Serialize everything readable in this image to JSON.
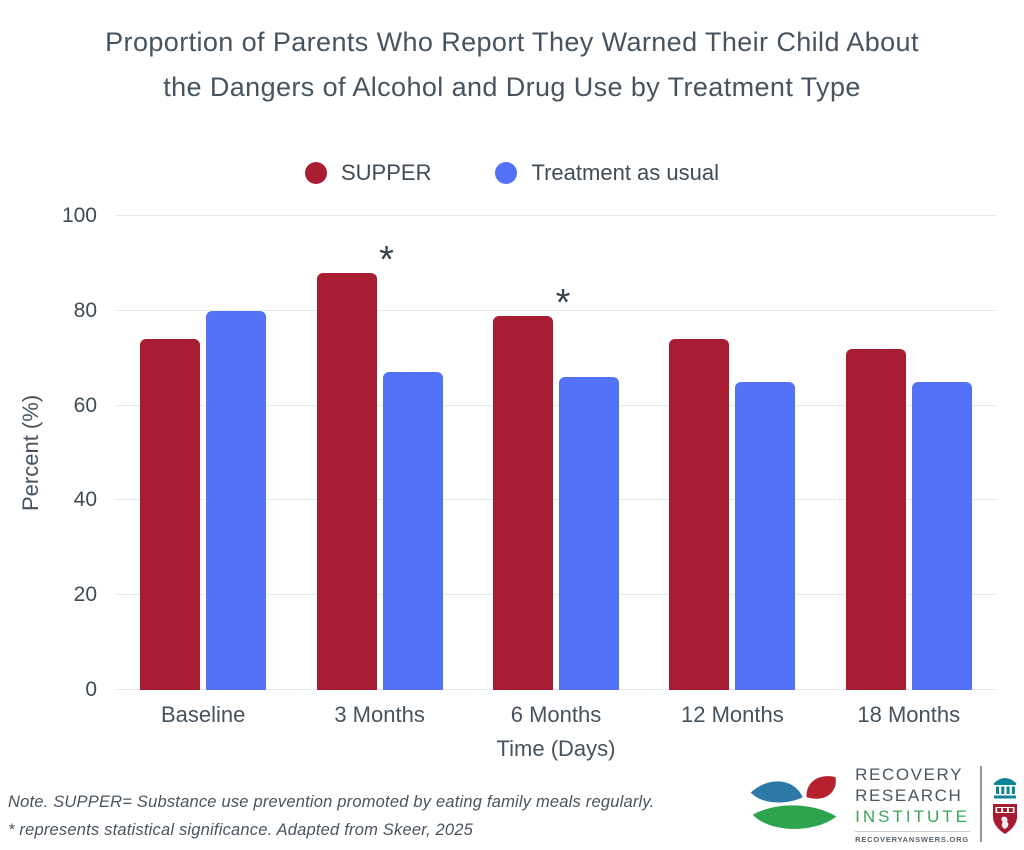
{
  "title": {
    "line1": "Proportion of Parents Who Report They Warned Their Child About",
    "line2": "the Dangers of Alcohol and Drug Use by Treatment Type"
  },
  "chart_data": {
    "type": "bar",
    "title": "Proportion of Parents Who Report They Warned Their Child About the Dangers of Alcohol and Drug Use by Treatment Type",
    "categories": [
      "Baseline",
      "3 Months",
      "6 Months",
      "12 Months",
      "18 Months"
    ],
    "series": [
      {
        "name": "SUPPER",
        "color": "#A81D31",
        "values": [
          74,
          88,
          79,
          74,
          72
        ]
      },
      {
        "name": "Treatment as usual",
        "color": "#5372F8",
        "values": [
          80,
          67,
          66,
          65,
          65
        ]
      }
    ],
    "significance": {
      "marker": "*",
      "applies_to": "SUPPER",
      "flags": [
        false,
        true,
        true,
        false,
        false
      ]
    },
    "xlabel": "Time (Days)",
    "ylabel": "Percent (%)",
    "ylim": [
      0,
      100
    ],
    "yticks": [
      0,
      20,
      40,
      60,
      80,
      100
    ],
    "grid": true,
    "legend_position": "top",
    "gridline_color": "#E8E9EA",
    "text_color": "#46535E"
  },
  "note": {
    "line1": "Note. SUPPER= Substance use prevention promoted by eating family meals regularly.",
    "line2": "* represents statistical significance. Adapted from Skeer, 2025"
  },
  "logo": {
    "name_line1": "RECOVERY",
    "name_line2": "RESEARCH",
    "name_line3": "INSTITUTE",
    "url": "RECOVERYANSWERS.ORG",
    "green": "#3EA55B",
    "text_gray": "#4A5660",
    "leaf_blue": "#2E79A8",
    "leaf_red": "#B5212F",
    "leaf_green": "#2EA44F",
    "building_teal": "#0F8499",
    "shield_crimson": "#A51C30"
  }
}
